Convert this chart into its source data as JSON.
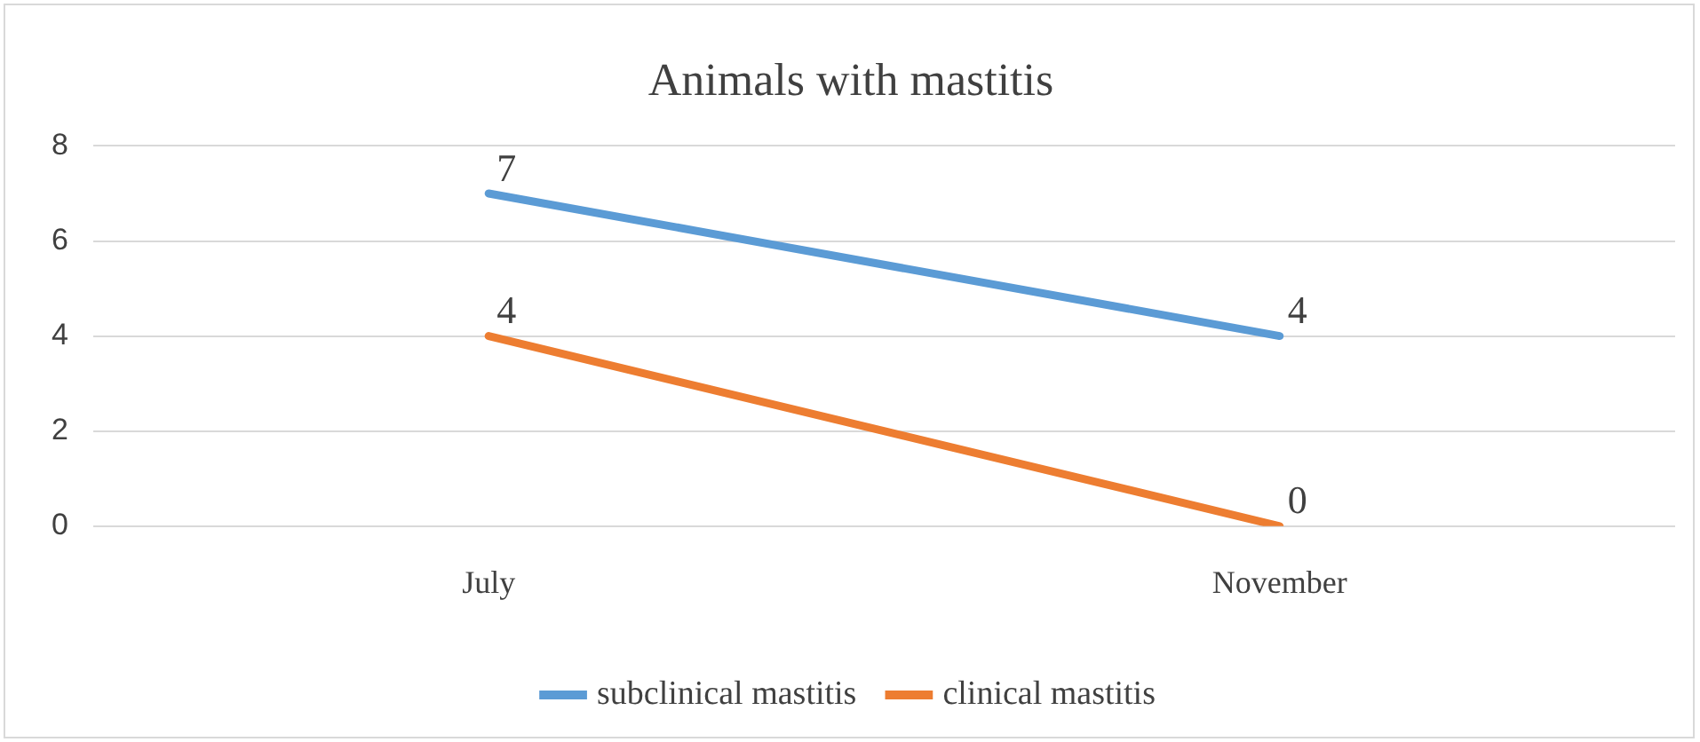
{
  "chart_data": {
    "type": "line",
    "title": "Animals with mastitis",
    "categories": [
      "July",
      "November"
    ],
    "series": [
      {
        "name": "subclinical mastitis",
        "color": "#5b9bd5",
        "values": [
          7,
          4
        ]
      },
      {
        "name": "clinical mastitis",
        "color": "#ed7d31",
        "values": [
          4,
          0
        ]
      }
    ],
    "ylim": [
      0,
      8
    ],
    "yticks": [
      0,
      2,
      4,
      6,
      8
    ],
    "grid": "y",
    "legend": "bottom",
    "data_labels": true,
    "marker": "none"
  }
}
